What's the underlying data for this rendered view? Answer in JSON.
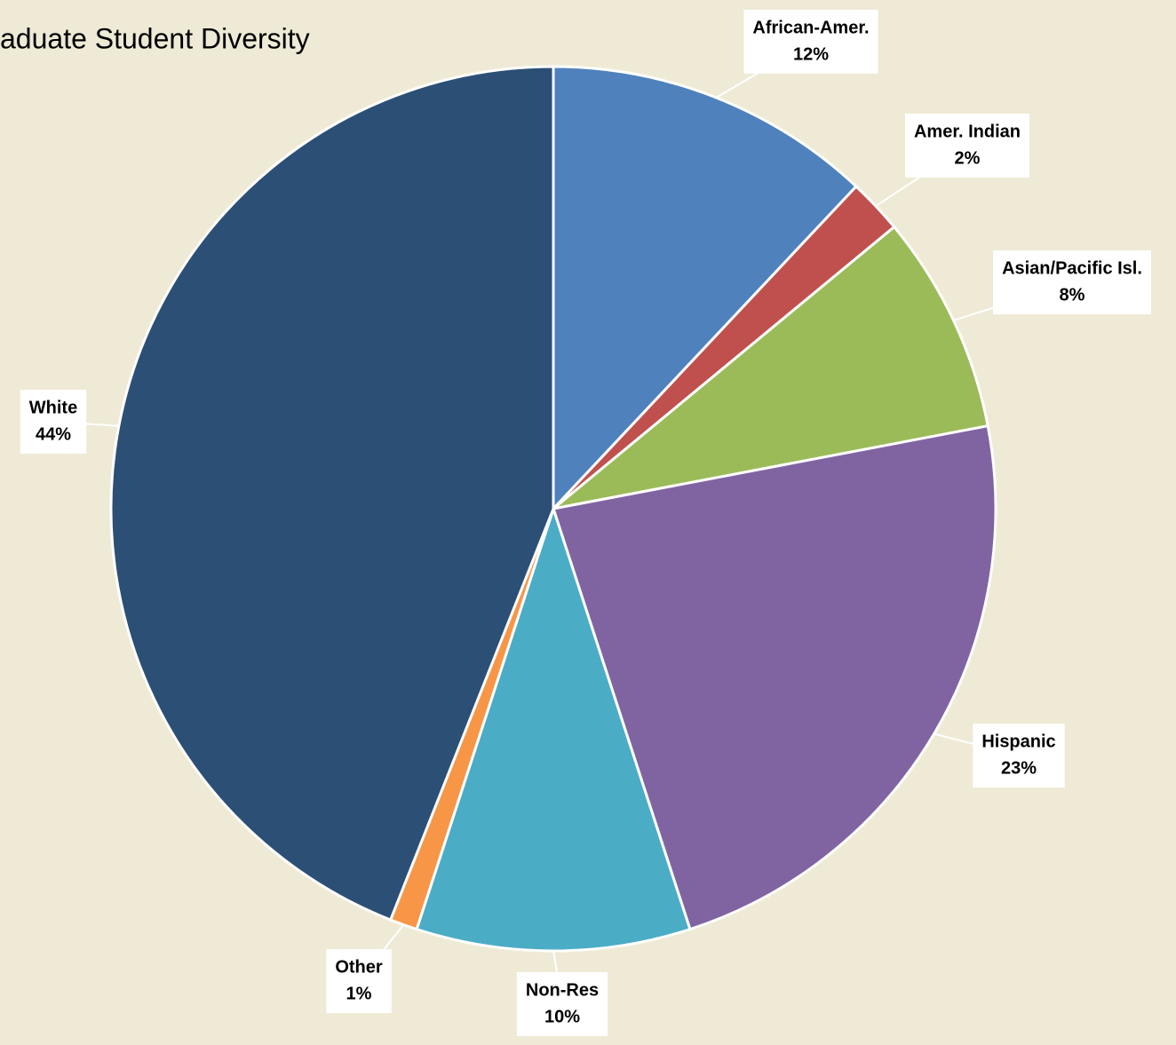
{
  "chart_data": {
    "type": "pie",
    "title": "aduate Student Diversity",
    "categories": [
      "African-Amer.",
      "Amer. Indian",
      "Asian/Pacific Isl.",
      "Hispanic",
      "Non-Res",
      "Other",
      "White"
    ],
    "values": [
      12,
      2,
      8,
      23,
      10,
      1,
      44
    ],
    "value_labels": [
      "12%",
      "2%",
      "8%",
      "23%",
      "10%",
      "1%",
      "44%"
    ],
    "colors": [
      "#4f81bd",
      "#c0504d",
      "#9bbb59",
      "#8064a2",
      "#4bacc6",
      "#f79646",
      "#2c4f76"
    ]
  }
}
